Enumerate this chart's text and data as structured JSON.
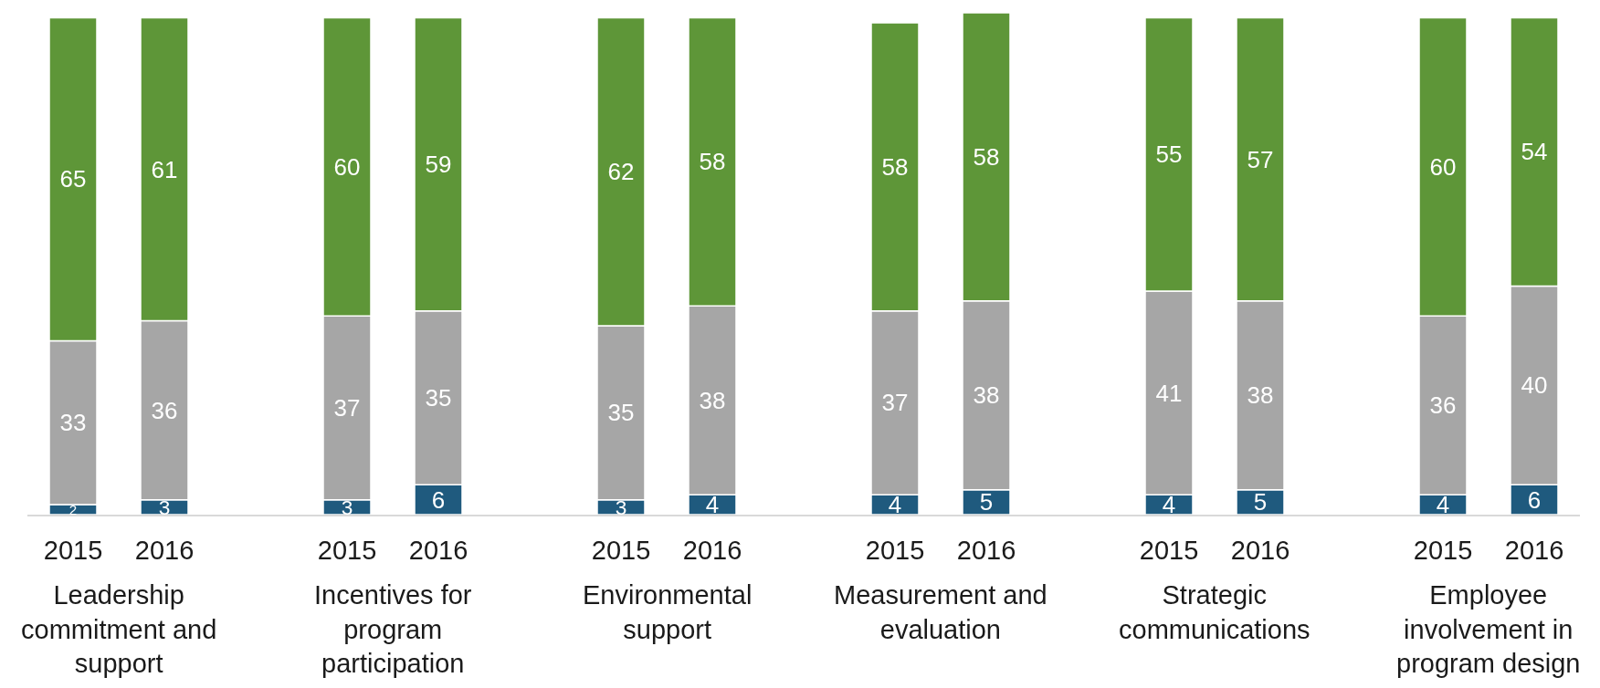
{
  "chart_data": {
    "type": "bar",
    "stacked": true,
    "data_labels": true,
    "tick_labels": "x",
    "categories": [
      "2015",
      "2016",
      "2015",
      "2016",
      "2015",
      "2016",
      "2015",
      "2016",
      "2015",
      "2016",
      "2015",
      "2016"
    ],
    "series": [
      {
        "color": "#1f5a7e",
        "values": [
          2,
          3,
          3,
          6,
          3,
          4,
          4,
          5,
          4,
          5,
          4,
          6
        ]
      },
      {
        "color": "#a6a6a6",
        "values": [
          33,
          36,
          37,
          35,
          35,
          38,
          37,
          38,
          41,
          38,
          36,
          40
        ]
      },
      {
        "color": "#5e9638",
        "values": [
          65,
          61,
          60,
          59,
          62,
          58,
          58,
          58,
          55,
          57,
          60,
          54
        ]
      }
    ],
    "annotations": [
      "Leadership commitment and support",
      "Incentives for program participation",
      "Environmental support",
      "Measurement and evaluation",
      "Strategic communications",
      "Employee involvement in program design"
    ]
  }
}
